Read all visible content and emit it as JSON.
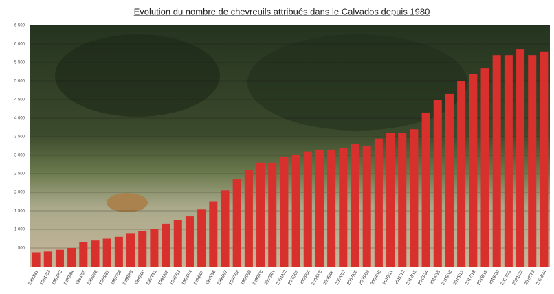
{
  "chart_data": {
    "type": "bar",
    "title": "Evolution du nombre de chevreuils attribués dans le Calvados depuis 1980",
    "categories": [
      "1980/81",
      "1981/82",
      "1982/83",
      "1983/84",
      "1984/85",
      "1985/86",
      "1986/87",
      "1987/88",
      "1988/89",
      "1989/90",
      "1990/91",
      "1991/92",
      "1992/93",
      "1993/94",
      "1994/95",
      "1995/96",
      "1996/97",
      "1997/98",
      "1998/99",
      "1999/00",
      "2000/01",
      "2001/02",
      "2002/03",
      "2003/04",
      "2004/05",
      "2005/06",
      "2006/07",
      "2007/08",
      "2008/09",
      "2009/10",
      "2010/11",
      "2011/12",
      "2012/13",
      "2013/14",
      "2014/15",
      "2015/16",
      "2016/17",
      "2017/18",
      "2018/19",
      "2019/20",
      "2020/21",
      "2021/22",
      "2022/23",
      "2023/24"
    ],
    "values": [
      380,
      400,
      450,
      500,
      650,
      700,
      750,
      800,
      900,
      950,
      1000,
      1150,
      1250,
      1350,
      1550,
      1750,
      2050,
      2350,
      2600,
      2800,
      2800,
      2950,
      3000,
      3100,
      3150,
      3150,
      3200,
      3300,
      3250,
      3450,
      3600,
      3600,
      3700,
      4150,
      4500,
      4650,
      5000,
      5200,
      5350,
      5700,
      5700,
      5850,
      5700,
      5800
    ],
    "color": "#d8302c",
    "ylim": [
      0,
      6500
    ],
    "yticks": [
      500,
      {
        "value": 1000,
        "label": "1 000"
      },
      {
        "value": 1500,
        "label": "1 500"
      },
      {
        "value": 2000,
        "label": "2 000"
      },
      {
        "value": 2500,
        "label": "2 500"
      },
      {
        "value": 3000,
        "label": "3 000"
      },
      {
        "value": 3500,
        "label": "3 500"
      },
      {
        "value": 4000,
        "label": "4 000"
      },
      {
        "value": 4500,
        "label": "4 500"
      },
      {
        "value": 5000,
        "label": "5 000"
      },
      {
        "value": 5500,
        "label": "5 500"
      },
      {
        "value": 6000,
        "label": "6 000"
      },
      {
        "value": 6500,
        "label": "6 500"
      }
    ],
    "grid": true
  }
}
